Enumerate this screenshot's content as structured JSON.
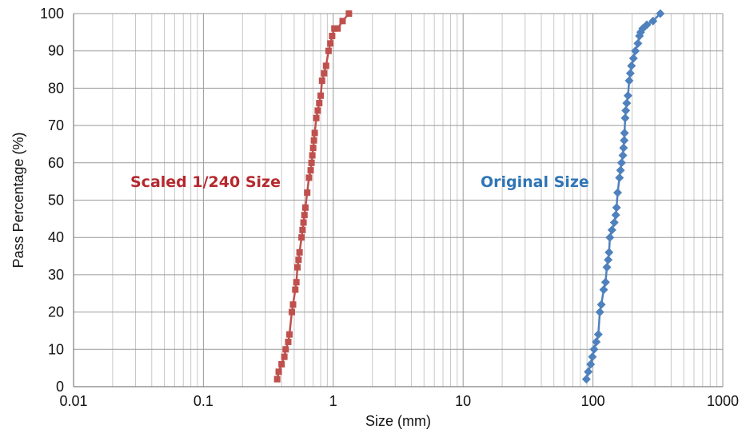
{
  "chart_data": {
    "type": "line",
    "xlabel": "Size (mm)",
    "ylabel": "Pass Percentage (%)",
    "x_scale": "log",
    "xlim": [
      0.01,
      1000
    ],
    "ylim": [
      0,
      100
    ],
    "x_ticks": [
      {
        "value": 0.01,
        "label": "0.01"
      },
      {
        "value": 0.1,
        "label": "0.1"
      },
      {
        "value": 1,
        "label": "1"
      },
      {
        "value": 10,
        "label": "10"
      },
      {
        "value": 100,
        "label": "100"
      },
      {
        "value": 1000,
        "label": "1000"
      }
    ],
    "y_ticks": [
      {
        "value": 0,
        "label": "0"
      },
      {
        "value": 10,
        "label": "10"
      },
      {
        "value": 20,
        "label": "20"
      },
      {
        "value": 30,
        "label": "30"
      },
      {
        "value": 40,
        "label": "40"
      },
      {
        "value": 50,
        "label": "50"
      },
      {
        "value": 60,
        "label": "60"
      },
      {
        "value": 70,
        "label": "70"
      },
      {
        "value": 80,
        "label": "80"
      },
      {
        "value": 90,
        "label": "90"
      },
      {
        "value": 100,
        "label": "100"
      }
    ],
    "grid": {
      "major": true,
      "minor_x": true
    },
    "annotations": [
      {
        "text": "Scaled 1/240 Size",
        "color": "#b5292e",
        "series": 0
      },
      {
        "text": "Original Size",
        "color": "#2f75b5",
        "series": 1
      }
    ],
    "series": [
      {
        "name": "Scaled 1/240 Size",
        "color": "#c0504d",
        "marker": "square",
        "x": [
          0.37,
          0.38,
          0.4,
          0.42,
          0.43,
          0.45,
          0.46,
          0.48,
          0.49,
          0.51,
          0.52,
          0.53,
          0.54,
          0.55,
          0.57,
          0.58,
          0.59,
          0.6,
          0.61,
          0.63,
          0.65,
          0.67,
          0.68,
          0.69,
          0.7,
          0.71,
          0.72,
          0.74,
          0.76,
          0.78,
          0.8,
          0.82,
          0.85,
          0.88,
          0.92,
          0.95,
          0.98,
          1.02,
          1.08,
          1.18,
          1.32
        ],
        "y": [
          2,
          4,
          6,
          8,
          10,
          12,
          14,
          20,
          22,
          26,
          28,
          32,
          34,
          36,
          40,
          42,
          44,
          46,
          48,
          52,
          56,
          58,
          60,
          62,
          64,
          66,
          68,
          72,
          74,
          76,
          78,
          82,
          84,
          86,
          90,
          92,
          94,
          96,
          96,
          98,
          100
        ]
      },
      {
        "name": "Original Size",
        "color": "#4f81bd",
        "marker": "diamond",
        "x": [
          89,
          92,
          96,
          99,
          102,
          106,
          110,
          113,
          116,
          121,
          125,
          128,
          131,
          133,
          135,
          140,
          146,
          150,
          152,
          155,
          160,
          163,
          166,
          170,
          172,
          174,
          175,
          177,
          179,
          182,
          186,
          190,
          194,
          198,
          205,
          212,
          222,
          228,
          233,
          242,
          260,
          290,
          330
        ],
        "y": [
          2,
          4,
          6,
          8,
          10,
          12,
          14,
          20,
          22,
          26,
          28,
          32,
          34,
          36,
          40,
          42,
          44,
          46,
          48,
          52,
          56,
          58,
          60,
          62,
          64,
          66,
          68,
          72,
          74,
          76,
          78,
          82,
          84,
          86,
          88,
          90,
          92,
          94,
          95,
          96,
          97,
          98,
          100
        ]
      }
    ]
  }
}
